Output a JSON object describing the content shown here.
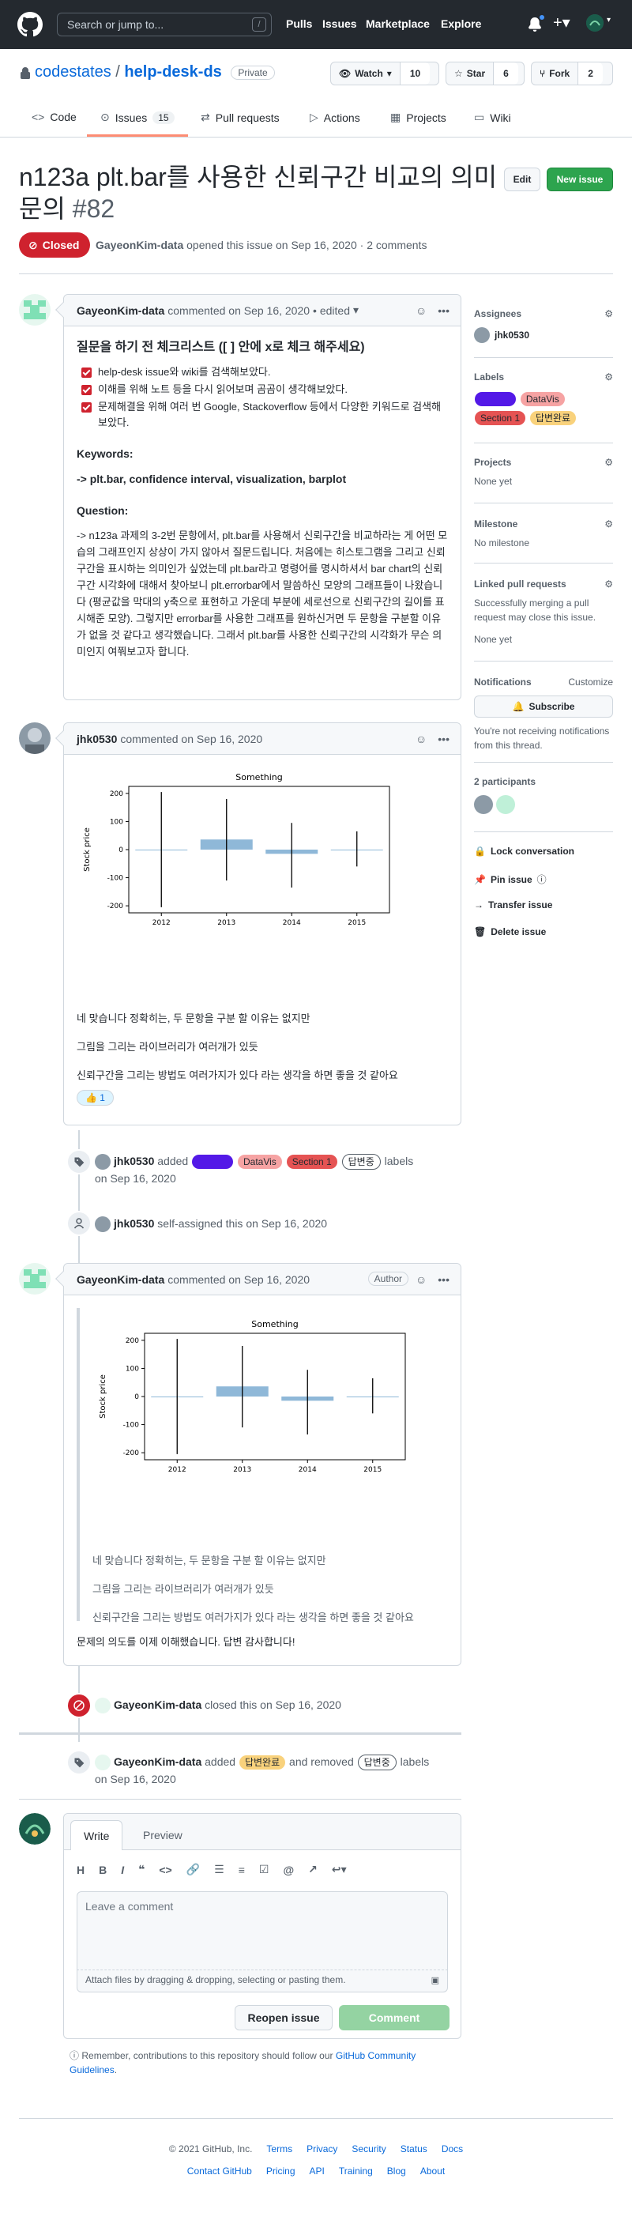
{
  "header": {
    "search_placeholder": "Search or jump to...",
    "search_shortcut": "/",
    "nav": [
      "Pulls",
      "Issues",
      "Marketplace",
      "Explore"
    ]
  },
  "repo": {
    "owner": "codestates",
    "name": "help-desk-ds",
    "visibility": "Private",
    "watch_label": "Watch",
    "watch_count": "10",
    "star_label": "Star",
    "star_count": "6",
    "fork_label": "Fork",
    "fork_count": "2"
  },
  "tabs": {
    "code": "Code",
    "issues": "Issues",
    "issues_count": "15",
    "pulls": "Pull requests",
    "actions": "Actions",
    "projects": "Projects",
    "wiki": "Wiki"
  },
  "issue": {
    "title": "n123a plt.bar를 사용한 신뢰구간 비교의 의미 문의",
    "number": "#82",
    "edit_label": "Edit",
    "new_issue_label": "New issue",
    "state": "Closed",
    "author": "GayeonKim-data",
    "meta_rest": "opened this issue on Sep 16, 2020 · 2 comments"
  },
  "comment1": {
    "author": "GayeonKim-data",
    "action": "commented on Sep 16, 2020",
    "edited": "• edited",
    "heading": "질문을 하기 전 체크리스트 ([ ] 안에 x로 체크 해주세요)",
    "checks": [
      "help-desk issue와 wiki를 검색해보았다.",
      "이해를 위해 노트 등을 다시 읽어보며 곰곰이 생각해보았다.",
      "문제해결을 위해 여러 번 Google, Stackoverflow 등에서 다양한 키워드로 검색해 보았다."
    ],
    "keywords_label": "Keywords:",
    "keywords": "-> plt.bar, confidence interval, visualization, barplot",
    "question_label": "Question:",
    "question": "-> n123a 과제의 3-2번 문항에서, plt.bar를 사용해서 신뢰구간을 비교하라는 게 어떤 모습의 그래프인지 상상이 가지 않아서 질문드립니다. 처음에는 히스토그램을 그리고 신뢰구간을 표시하는 의미인가 싶었는데 plt.bar라고 명령어를 명시하셔서 bar chart의 신뢰구간 시각화에 대해서 찾아보니 plt.errorbar에서 말씀하신 모양의 그래프들이 나왔습니다 (평균값을 막대의 y축으로 표현하고 가운데 부분에 세로선으로 신뢰구간의 길이를 표시해준 모양). 그렇지만 errorbar를 사용한 그래프를 원하신거면 두 문항을 구분할 이유가 없을 것 같다고 생각했습니다. 그래서 plt.bar를 사용한 신뢰구간의 시각화가 무슨 의미인지 여쭤보고자 합니다."
  },
  "comment2": {
    "author": "jhk0530",
    "action": "commented on Sep 16, 2020",
    "lines": [
      "네 맞습니다 정확히는, 두 문항을 구분 할 이유는 없지만",
      "그림을 그리는 라이브러리가 여러개가 있듯",
      "신뢰구간을 그리는 방법도 여러가지가 있다 라는 생각을 하면 좋을 것 같아요"
    ],
    "reaction_emoji": "👍",
    "reaction_count": "1"
  },
  "chart_data": {
    "type": "bar",
    "title": "Something",
    "xlabel": "",
    "ylabel": "Stock price",
    "categories": [
      "2012",
      "2013",
      "2014",
      "2015"
    ],
    "values": [
      0,
      36,
      -15,
      0
    ],
    "ci_low": [
      -205,
      -110,
      -135,
      -60
    ],
    "ci_high": [
      205,
      180,
      95,
      65
    ],
    "yticks": [
      200,
      100,
      0,
      -100,
      -200
    ],
    "ylim": [
      -225,
      225
    ],
    "bar_color": "#8fb8d8"
  },
  "event1": {
    "actor": "jhk0530",
    "verb": "added",
    "labels": [
      {
        "name": "",
        "bg": "#5319e7",
        "fg": "#ffffff"
      },
      {
        "name": "DataVis",
        "bg": "#f6a3a3",
        "fg": "#24292f"
      },
      {
        "name": "Section 1",
        "bg": "#e55353",
        "fg": "#24292f"
      },
      {
        "name": "답변중",
        "bg": "#ffffff",
        "fg": "#24292f"
      }
    ],
    "suffix": "labels",
    "date": "on Sep 16, 2020"
  },
  "event2": {
    "actor": "jhk0530",
    "text": "self-assigned this on Sep 16, 2020"
  },
  "comment3": {
    "author": "GayeonKim-data",
    "action": "commented on Sep 16, 2020",
    "author_badge": "Author",
    "quote_lines": [
      "네 맞습니다 정확히는, 두 문항을 구분 할 이유는 없지만",
      "그림을 그리는 라이브러리가 여러개가 있듯",
      "신뢰구간을 그리는 방법도 여러가지가 있다 라는 생각을 하면 좋을 것 같아요"
    ],
    "reply": "문제의 의도를 이제 이해했습니다. 답변 감사합니다!"
  },
  "event3": {
    "actor": "GayeonKim-data",
    "text": "closed this on Sep 16, 2020"
  },
  "event4": {
    "actor": "GayeonKim-data",
    "verb": "added",
    "added_label": {
      "name": "답변완료",
      "bg": "#f9d27c",
      "fg": "#24292f"
    },
    "middle": "and removed",
    "removed_label": {
      "name": "답변중",
      "bg": "#ffffff",
      "fg": "#24292f"
    },
    "suffix": "labels",
    "date": "on Sep 16, 2020"
  },
  "editor": {
    "tab_write": "Write",
    "tab_preview": "Preview",
    "placeholder": "Leave a comment",
    "attach": "Attach files by dragging & dropping, selecting or pasting them.",
    "reopen_label": "Reopen issue",
    "comment_label": "Comment",
    "note": "Remember, contributions to this repository should follow our",
    "note_link": "GitHub Community Guidelines",
    "note_end": "."
  },
  "sidebar": {
    "assignees_label": "Assignees",
    "assignee": "jhk0530",
    "labels_label": "Labels",
    "labels": [
      {
        "name": "",
        "bg": "#5319e7",
        "fg": "#ffffff"
      },
      {
        "name": "DataVis",
        "bg": "#f6a3a3",
        "fg": "#24292f"
      },
      {
        "name": "Section 1",
        "bg": "#e55353",
        "fg": "#24292f"
      },
      {
        "name": "답변완료",
        "bg": "#f9d27c",
        "fg": "#24292f"
      }
    ],
    "projects_label": "Projects",
    "projects_value": "None yet",
    "milestone_label": "Milestone",
    "milestone_value": "No milestone",
    "linked_label": "Linked pull requests",
    "linked_text": "Successfully merging a pull request may close this issue.",
    "linked_value": "None yet",
    "notifications_label": "Notifications",
    "customize": "Customize",
    "subscribe": "Subscribe",
    "notif_text": "You're not receiving notifications from this thread.",
    "participants_label": "2 participants",
    "lock": "Lock conversation",
    "pin": "Pin issue",
    "transfer": "Transfer issue",
    "delete": "Delete issue"
  },
  "footer": {
    "copyright": "© 2021 GitHub, Inc.",
    "row1": [
      "Terms",
      "Privacy",
      "Security",
      "Status",
      "Docs"
    ],
    "row2": [
      "Contact GitHub",
      "Pricing",
      "API",
      "Training",
      "Blog",
      "About"
    ]
  },
  "colors": {
    "accent": "#0969da",
    "closed": "#cf222e",
    "green": "#2da44e"
  }
}
